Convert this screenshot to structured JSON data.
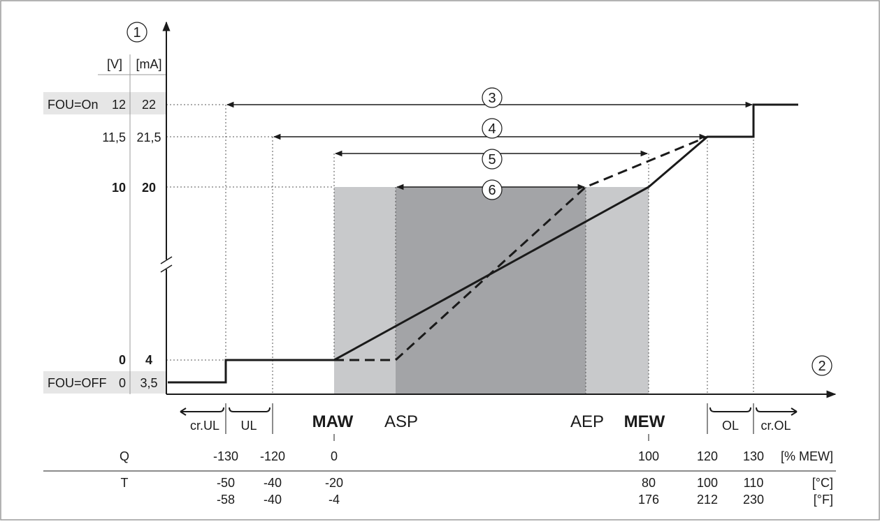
{
  "markers": {
    "m1": "1",
    "m2": "2",
    "m3": "3",
    "m4": "4",
    "m5": "5",
    "m6": "6"
  },
  "y_axis": {
    "unit_v": "[V]",
    "unit_ma": "[mA]",
    "rows": [
      {
        "label": "FOU=On",
        "v": "12",
        "ma": "22",
        "highlight": true
      },
      {
        "label": "",
        "v": "11,5",
        "ma": "21,5",
        "highlight": false
      },
      {
        "label": "",
        "v": "10",
        "ma": "20",
        "highlight": false,
        "bold": true
      },
      {
        "label": "",
        "v": "0",
        "ma": "4",
        "highlight": false,
        "bold": true
      },
      {
        "label": "FOU=OFF",
        "v": "0",
        "ma": "3,5",
        "highlight": true
      }
    ]
  },
  "x_markers": {
    "maw": "MAW",
    "asp": "ASP",
    "aep": "AEP",
    "mew": "MEW",
    "cr_ul": "cr.UL",
    "ul": "UL",
    "ol": "OL",
    "cr_ol": "cr.OL"
  },
  "q_row": {
    "label": "Q",
    "unit": "[% MEW]",
    "values": [
      "-130",
      "-120",
      "0",
      "100",
      "120",
      "130"
    ]
  },
  "t_row": {
    "label": "T",
    "unit_c": "[°C]",
    "unit_f": "[°F]",
    "celsius": [
      "-50",
      "-40",
      "-20",
      "80",
      "100",
      "110"
    ],
    "fahrenheit": [
      "-58",
      "-40",
      "-4",
      "176",
      "212",
      "230"
    ]
  },
  "colors": {
    "line": "#1a1a1a",
    "light_zone": "#c8c9cb",
    "dark_zone": "#a3a4a7",
    "label_bg": "#e6e6e6",
    "guide": "#555555",
    "frame": "#9a9a9a"
  }
}
